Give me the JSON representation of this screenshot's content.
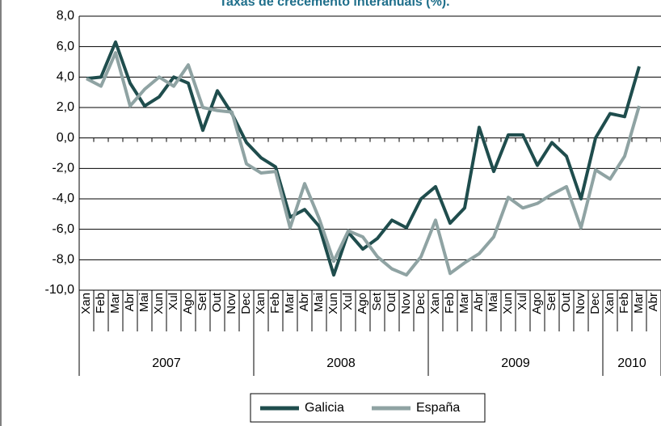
{
  "chart_data": {
    "type": "line",
    "title": "Taxas de crecemento interanuais (%).",
    "categories": [
      "Xan",
      "Feb",
      "Mar",
      "Abr",
      "Mai",
      "Xun",
      "Xul",
      "Ago",
      "Set",
      "Out",
      "Nov",
      "Dec",
      "Xan",
      "Feb",
      "Mar",
      "Abr",
      "Mai",
      "Xun",
      "Xul",
      "Ago",
      "Set",
      "Out",
      "Nov",
      "Dec",
      "Xan",
      "Feb",
      "Mar",
      "Abr",
      "Mai",
      "Xun",
      "Xul",
      "Ago",
      "Set",
      "Out",
      "Nov",
      "Dec",
      "Xan",
      "Feb",
      "Mar",
      "Abr"
    ],
    "years": [
      "2007",
      "2008",
      "2009",
      "2010"
    ],
    "series": [
      {
        "name": "Galicia",
        "color": "#1f4d4d",
        "values": [
          3.9,
          4.0,
          6.3,
          3.6,
          2.1,
          2.7,
          4.0,
          3.6,
          0.5,
          3.1,
          1.6,
          -0.3,
          -1.3,
          -1.9,
          -5.2,
          -4.7,
          -5.8,
          -9.0,
          -6.2,
          -7.3,
          -6.6,
          -5.4,
          -5.9,
          -4.0,
          -3.2,
          -5.6,
          -4.6,
          0.7,
          -2.2,
          0.2,
          0.2,
          -1.8,
          -0.3,
          -1.2,
          -4.0,
          0.0,
          1.6,
          1.4,
          4.7,
          null
        ]
      },
      {
        "name": "España",
        "color": "#8fa3a3",
        "values": [
          3.9,
          3.4,
          5.6,
          2.1,
          3.2,
          4.0,
          3.4,
          4.8,
          2.0,
          1.8,
          1.7,
          -1.7,
          -2.3,
          -2.2,
          -5.9,
          -3.0,
          -5.3,
          -8.1,
          -6.1,
          -6.5,
          -7.8,
          -8.6,
          -9.0,
          -7.8,
          -5.4,
          -8.9,
          -8.2,
          -7.6,
          -6.5,
          -3.9,
          -4.6,
          -4.3,
          -3.7,
          -3.2,
          -5.9,
          -2.1,
          -2.7,
          -1.2,
          2.1,
          null
        ]
      }
    ],
    "ylim": [
      -10,
      8
    ],
    "yticks": [
      {
        "value": -10,
        "label": "-10,0"
      },
      {
        "value": -8,
        "label": "-8,0"
      },
      {
        "value": -6,
        "label": "-6,0"
      },
      {
        "value": -4,
        "label": "-4,0"
      },
      {
        "value": -2,
        "label": "-2,0"
      },
      {
        "value": 0,
        "label": "0,0"
      },
      {
        "value": 2,
        "label": "2,0"
      },
      {
        "value": 4,
        "label": "4,0"
      },
      {
        "value": 6,
        "label": "6,0"
      },
      {
        "value": 8,
        "label": "8,0"
      }
    ],
    "grid": true
  }
}
